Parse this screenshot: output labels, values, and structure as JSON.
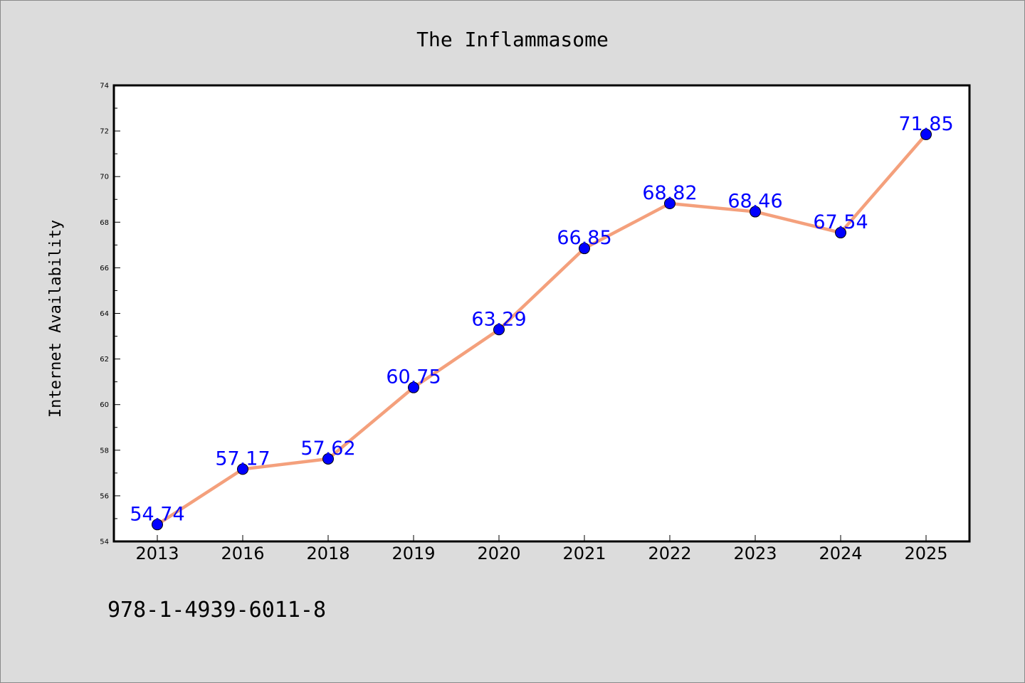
{
  "chart_data": {
    "type": "line",
    "title": "The Inflammasome",
    "xlabel": "",
    "ylabel": "Internet Availability",
    "categories": [
      "2013",
      "2016",
      "2018",
      "2019",
      "2020",
      "2021",
      "2022",
      "2023",
      "2024",
      "2025"
    ],
    "series": [
      {
        "values": [
          54.74,
          57.17,
          57.62,
          60.75,
          63.29,
          66.85,
          68.82,
          68.46,
          67.54,
          71.85
        ],
        "data_labels": [
          "54.74",
          "57.17",
          "57.62",
          "60.75",
          "63.29",
          "66.85",
          "68.82",
          "68.46",
          "67.54",
          "71.85"
        ],
        "line_color": "#f4a07c",
        "marker_color": "#0000ff",
        "label_color": "#0000ff"
      }
    ],
    "ylim": [
      54,
      74
    ],
    "yticks": [
      54,
      56,
      58,
      60,
      62,
      64,
      66,
      68,
      70,
      72,
      74
    ],
    "ytick_labels": [
      "54",
      "56",
      "58",
      "60",
      "62",
      "64",
      "66",
      "68",
      "70",
      "72",
      "74"
    ],
    "grid": false,
    "legend": "none"
  },
  "annotation": {
    "text": "978-1-4939-6011-8"
  },
  "colors": {
    "background": "#dcdcdc",
    "plot_area": "#ffffff"
  }
}
